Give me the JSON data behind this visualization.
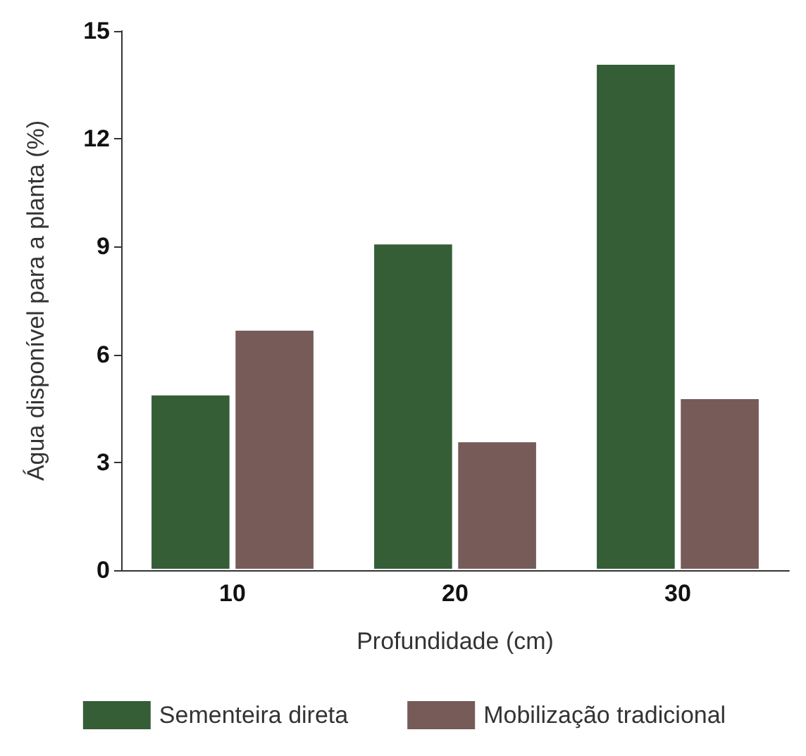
{
  "chart_data": {
    "type": "bar",
    "xlabel": "Profundidade (cm)",
    "ylabel": "Água disponível para a planta (%)",
    "categories": [
      "10",
      "20",
      "30"
    ],
    "series": [
      {
        "name": "Sementeira direta",
        "color": "#355e37",
        "values": [
          4.9,
          9.1,
          14.1
        ]
      },
      {
        "name": "Mobilização tradicional",
        "color": "#765b59",
        "values": [
          6.7,
          3.6,
          4.8
        ]
      }
    ],
    "ylim": [
      0,
      15
    ],
    "yticks": [
      0,
      3,
      6,
      9,
      12,
      15
    ],
    "grid": false,
    "legend": "bottom"
  }
}
